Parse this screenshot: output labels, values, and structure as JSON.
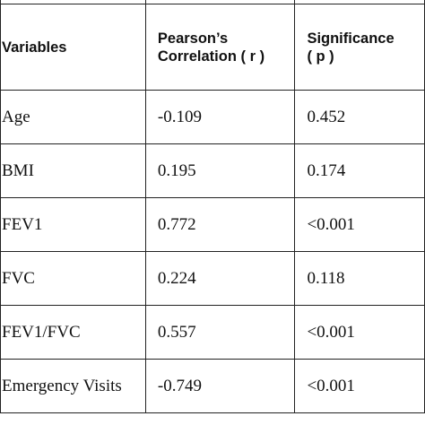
{
  "table": {
    "headers": {
      "variables": "Variables",
      "pearson_line1": "Pearson’s",
      "pearson_line2": "Correlation ( r )",
      "significance_line1": "Significance",
      "significance_line2": "( p )"
    },
    "rows": [
      {
        "variable": "Age",
        "r": "-0.109",
        "p": "0.452"
      },
      {
        "variable": "BMI",
        "r": "0.195",
        "p": "0.174"
      },
      {
        "variable": "FEV1",
        "r": "0.772",
        "p": "<0.001"
      },
      {
        "variable": "FVC",
        "r": "0.224",
        "p": "0.118"
      },
      {
        "variable": "FEV1/FVC",
        "r": "0.557",
        "p": "<0.001"
      },
      {
        "variable": "Emergency Visits",
        "r": "-0.749",
        "p": "<0.001"
      }
    ]
  }
}
